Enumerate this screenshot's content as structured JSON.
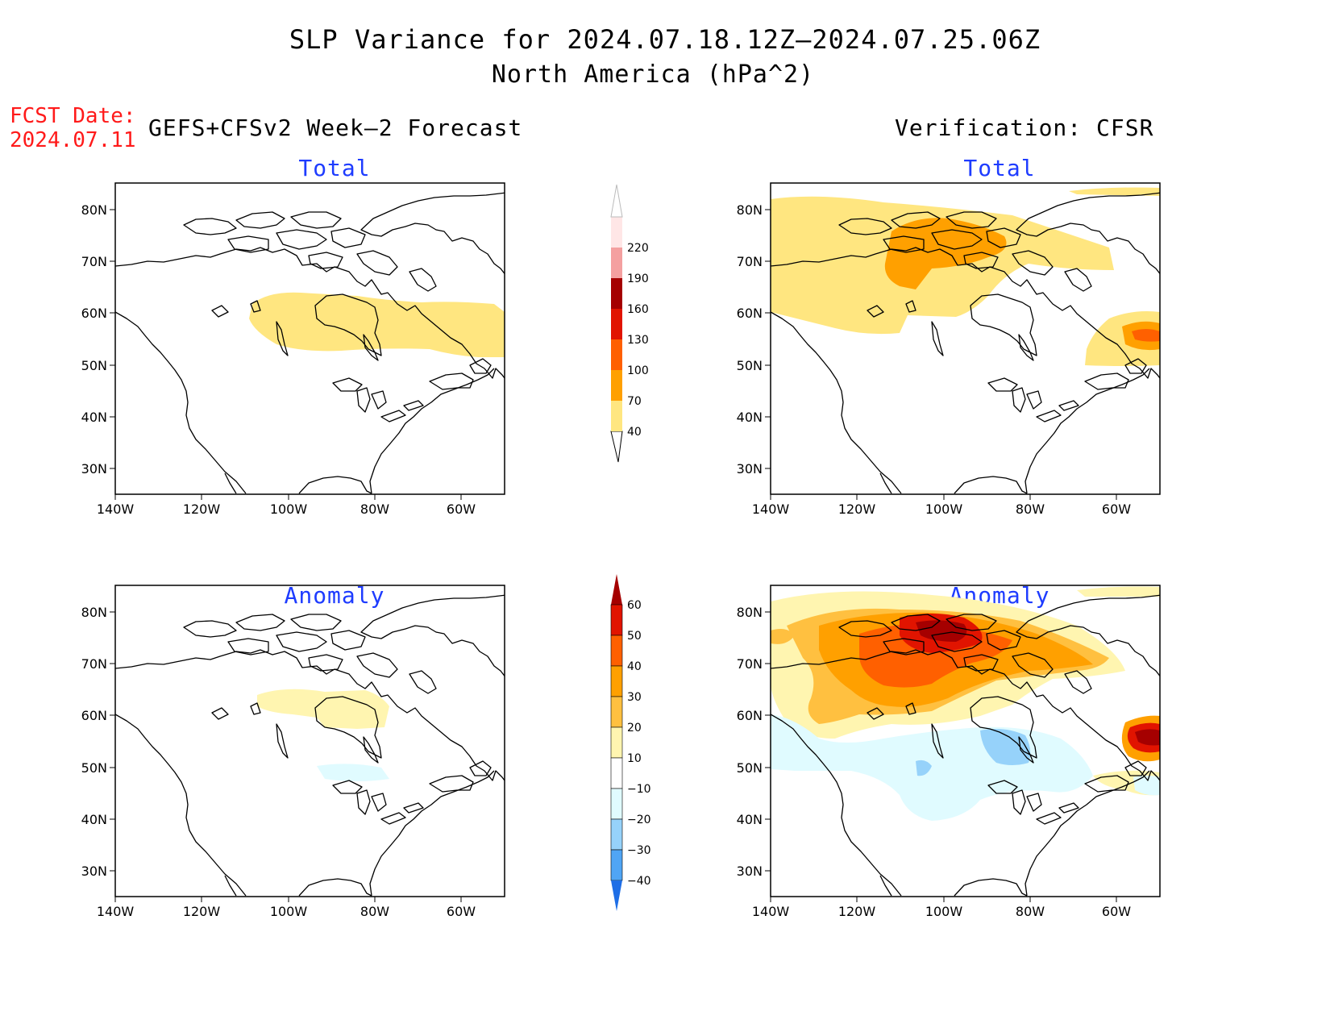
{
  "title": "SLP Variance for 2024.07.18.12Z–2024.07.25.06Z",
  "subtitle": "North America (hPa^2)",
  "fcst_date_label": "FCST Date:",
  "fcst_date_value": "2024.07.11",
  "left_header": "GEFS+CFSv2 Week–2 Forecast",
  "right_header": "Verification: CFSR",
  "panels": {
    "fc_total": {
      "title": "Total"
    },
    "vf_total": {
      "title": "Total"
    },
    "fc_anomaly": {
      "title": "Anomaly"
    },
    "vf_anomaly": {
      "title": "Anomaly"
    }
  },
  "axes": {
    "lat_ticks": [
      "80N",
      "70N",
      "60N",
      "50N",
      "40N",
      "30N"
    ],
    "lon_ticks": [
      "140W",
      "120W",
      "100W",
      "80W",
      "60W"
    ]
  },
  "colorbars": {
    "total": {
      "levels": [
        "40",
        "70",
        "100",
        "130",
        "160",
        "190",
        "220"
      ],
      "colors": [
        "#ffe680",
        "#ffa000",
        "#ff6000",
        "#e11400",
        "#a50000",
        "#f4a0a0",
        "#ffe6e6"
      ]
    },
    "anomaly": {
      "levels": [
        "60",
        "50",
        "40",
        "30",
        "20",
        "10",
        "−10",
        "−20",
        "−30",
        "−40"
      ],
      "colors": [
        "#a50000",
        "#e11400",
        "#ff6000",
        "#ffa000",
        "#ffc040",
        "#fff5b0",
        "#ffffff",
        "#e0fbff",
        "#96d2fa",
        "#50a5f5",
        "#1e6ee6"
      ]
    }
  }
}
